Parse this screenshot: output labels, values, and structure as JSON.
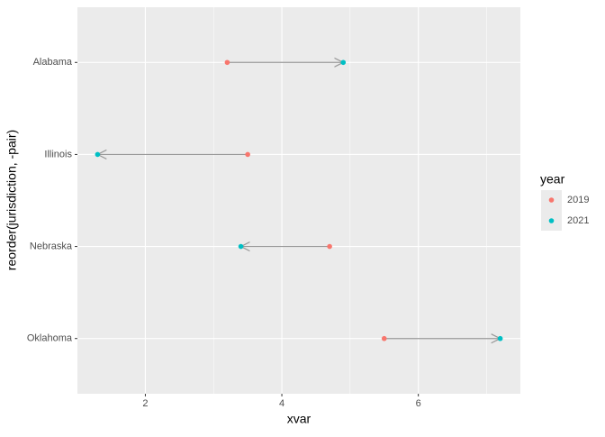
{
  "chart_data": {
    "type": "arrow",
    "x_label": "xvar",
    "y_label": "reorder(jurisdiction, -pair)",
    "categories": [
      "Alabama",
      "Illinois",
      "Nebraska",
      "Oklahoma"
    ],
    "series": [
      {
        "name": "2019",
        "color": "#F8766D",
        "values": [
          3.2,
          3.5,
          4.7,
          5.5
        ]
      },
      {
        "name": "2021",
        "color": "#00BFC4",
        "values": [
          4.9,
          1.3,
          3.4,
          7.2
        ]
      }
    ],
    "arrow_color": "#999999",
    "legend_title": "year",
    "legend": "right",
    "xlim": [
      1.005,
      7.495
    ],
    "xticks": [
      2,
      4,
      6
    ],
    "xminor": [
      3,
      5,
      7
    ],
    "grid": true
  }
}
